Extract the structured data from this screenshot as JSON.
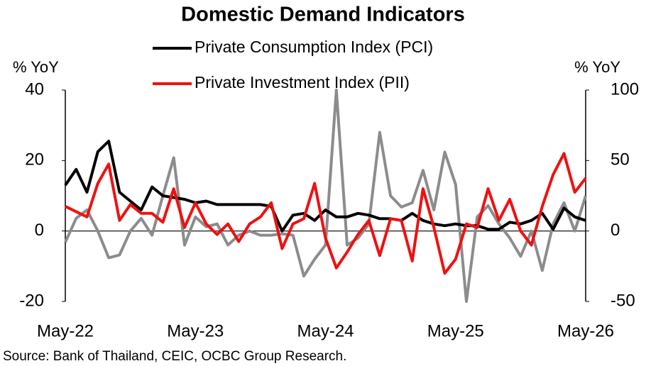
{
  "chart_data": {
    "type": "line",
    "title": "Domestic Demand Indicators",
    "ylabel": "% YoY",
    "y2label": "% YoY",
    "source": "Source: Bank of Thailand, CEIC, OCBC Group Research.",
    "categories": [
      "May-22",
      null,
      null,
      null,
      null,
      null,
      null,
      null,
      null,
      null,
      null,
      null,
      "May-23",
      null,
      null,
      null,
      null,
      null,
      null,
      null,
      null,
      null,
      null,
      null,
      "May-24",
      null,
      null,
      null,
      null,
      null,
      null,
      null,
      null,
      null,
      null,
      null,
      "May-25",
      null,
      null,
      null,
      null,
      null,
      null,
      null,
      null,
      null,
      null,
      null,
      "May-26"
    ],
    "ylim": [
      -20,
      40
    ],
    "yticks": [
      -20,
      0,
      20,
      40
    ],
    "y2lim": [
      -50,
      100
    ],
    "y2ticks": [
      -50,
      0,
      50,
      100
    ],
    "series": [
      {
        "name": "Private Consumption Index (PCI)",
        "color": "#000000",
        "values": [
          13,
          17.5,
          11,
          22.5,
          25.5,
          11,
          8.5,
          6,
          12.5,
          10,
          9.5,
          9,
          8,
          8.5,
          7.5,
          7.5,
          7.5,
          7.5,
          7.5,
          7,
          0,
          4.5,
          5,
          3,
          6,
          4,
          4,
          5,
          4.5,
          3.5,
          3.5,
          3,
          5,
          3,
          2,
          1.5,
          2,
          1.5,
          1.5,
          0.5,
          0.5,
          2.5,
          2,
          3,
          5,
          0.5,
          6.5,
          4,
          3
        ]
      },
      {
        "name": "Private Investment Index (PII)",
        "color": "#ee1111",
        "values": [
          7,
          5.5,
          4,
          13.5,
          19,
          3,
          7.5,
          5,
          5,
          2.5,
          12,
          1,
          8,
          2,
          -1,
          2,
          -3,
          2,
          4,
          8,
          -5,
          2,
          3.5,
          13.5,
          -2,
          -10.5,
          -6,
          -1,
          3,
          -7,
          3.5,
          3,
          -8.5,
          12,
          1,
          -12,
          -8,
          2,
          1,
          12,
          3,
          9,
          0,
          -4,
          7,
          16,
          22,
          11,
          15
        ]
      },
      {
        "color": "#8c8c8c",
        "axis": "y2",
        "values": [
          -8,
          9,
          15,
          0,
          -19,
          -17,
          0,
          9,
          -3,
          25,
          52,
          -10,
          10,
          3,
          5,
          -10,
          -3,
          0,
          -3,
          -3,
          -2,
          -3,
          -32,
          -20,
          -10,
          100,
          -10,
          -5,
          5,
          70,
          25,
          17,
          20,
          43,
          15,
          56,
          33,
          -50,
          10,
          18,
          5,
          -5,
          -18,
          0,
          -28,
          5,
          20,
          0,
          25
        ]
      }
    ]
  }
}
